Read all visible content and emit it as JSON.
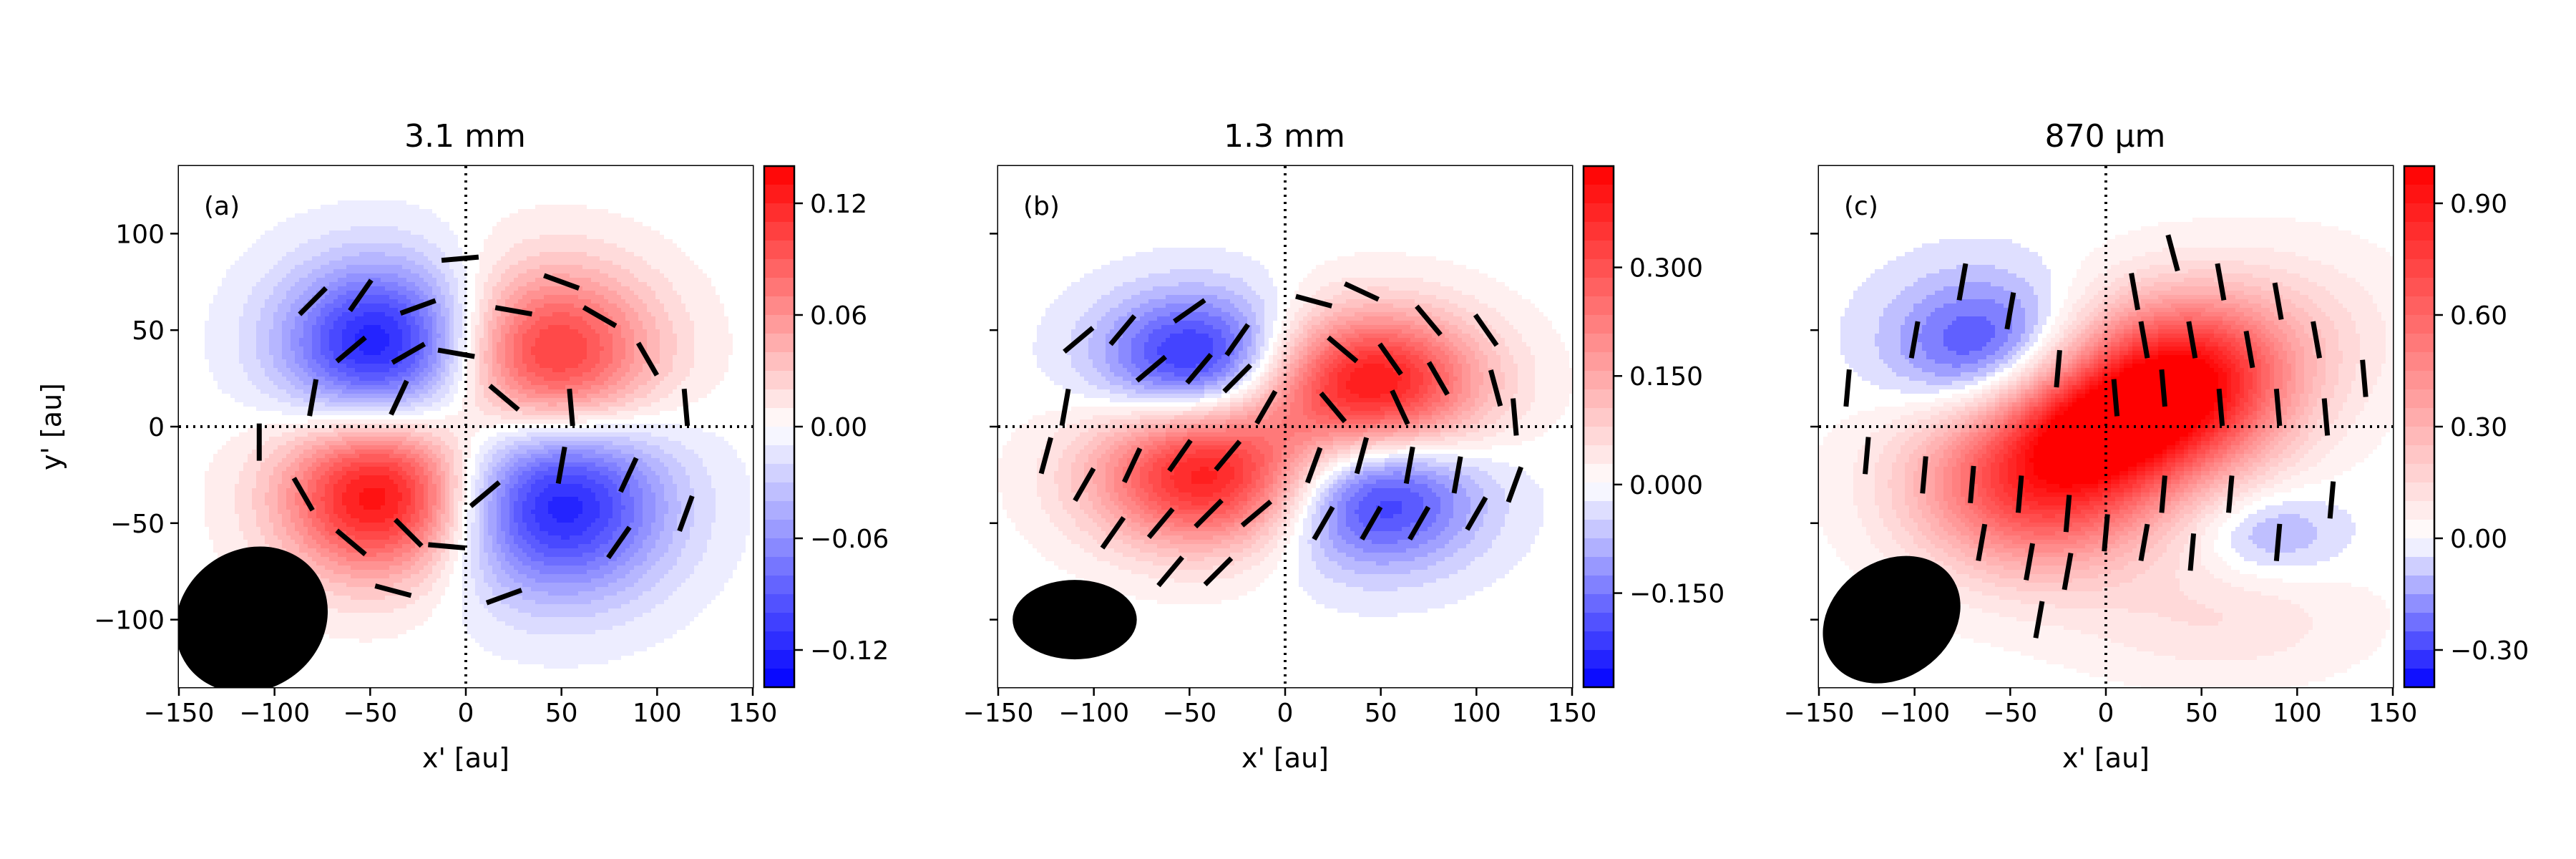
{
  "figure": {
    "xlabel": "x' [au]",
    "ylabel": "y' [au]",
    "x_ticks": [
      -150,
      -100,
      -50,
      0,
      50,
      100,
      150
    ],
    "y_ticks": [
      -100,
      -50,
      0,
      50,
      100
    ],
    "xlim": [
      -150,
      150
    ],
    "ylim": [
      -135,
      135
    ]
  },
  "chart_data": [
    {
      "type": "heatmap",
      "title": "3.1 mm",
      "label": "(a)",
      "xlabel": "x' [au]",
      "ylabel": "y' [au]",
      "xlim": [
        -150,
        150
      ],
      "ylim": [
        -135,
        135
      ],
      "show_ylabel": true,
      "show_ytick_labels": true,
      "colorbar": {
        "vmin": -0.14,
        "vmax": 0.14,
        "ticks": [
          -0.12,
          -0.06,
          0.0,
          0.06,
          0.12
        ],
        "tick_labels": [
          "−0.12",
          "−0.06",
          "0.00",
          "0.06",
          "0.12"
        ],
        "cmap": "bwr"
      },
      "blobs": [
        {
          "x": -45,
          "y": 42,
          "sx": 36,
          "sy": 30,
          "amp": -0.13
        },
        {
          "x": 45,
          "y": 35,
          "sx": 38,
          "sy": 32,
          "amp": 0.12
        },
        {
          "x": -45,
          "y": -35,
          "sx": 36,
          "sy": 30,
          "amp": 0.14
        },
        {
          "x": 48,
          "y": -38,
          "sx": 40,
          "sy": 34,
          "amp": -0.13
        }
      ],
      "vectors": [
        {
          "x": -80,
          "y": 65,
          "angle": 45
        },
        {
          "x": -55,
          "y": 68,
          "angle": 55
        },
        {
          "x": -25,
          "y": 62,
          "angle": 20
        },
        {
          "x": -60,
          "y": 40,
          "angle": 40
        },
        {
          "x": -30,
          "y": 38,
          "angle": 30
        },
        {
          "x": -80,
          "y": 15,
          "angle": 80
        },
        {
          "x": -35,
          "y": 15,
          "angle": 65
        },
        {
          "x": -5,
          "y": 38,
          "angle": -10
        },
        {
          "x": -3,
          "y": 87,
          "angle": 5
        },
        {
          "x": 25,
          "y": 60,
          "angle": -10
        },
        {
          "x": 50,
          "y": 75,
          "angle": -20
        },
        {
          "x": 70,
          "y": 57,
          "angle": -30
        },
        {
          "x": 20,
          "y": 15,
          "angle": -40
        },
        {
          "x": 55,
          "y": 10,
          "angle": -85
        },
        {
          "x": 95,
          "y": 35,
          "angle": -60
        },
        {
          "x": 115,
          "y": 10,
          "angle": -85
        },
        {
          "x": -108,
          "y": -8,
          "angle": 90
        },
        {
          "x": -85,
          "y": -35,
          "angle": -60
        },
        {
          "x": -60,
          "y": -60,
          "angle": -40
        },
        {
          "x": -30,
          "y": -55,
          "angle": -45
        },
        {
          "x": -10,
          "y": -62,
          "angle": -5
        },
        {
          "x": -38,
          "y": -85,
          "angle": -15
        },
        {
          "x": 10,
          "y": -35,
          "angle": 40
        },
        {
          "x": 20,
          "y": -88,
          "angle": 20
        },
        {
          "x": 50,
          "y": -20,
          "angle": 80
        },
        {
          "x": 85,
          "y": -25,
          "angle": 65
        },
        {
          "x": 80,
          "y": -60,
          "angle": 55
        },
        {
          "x": 115,
          "y": -45,
          "angle": 70
        }
      ],
      "beam": {
        "x": -112,
        "y": -100,
        "major": 70,
        "minor": 60,
        "angle": 35
      }
    },
    {
      "type": "heatmap",
      "title": "1.3 mm",
      "label": "(b)",
      "xlabel": "x' [au]",
      "ylabel": "",
      "xlim": [
        -150,
        150
      ],
      "ylim": [
        -135,
        135
      ],
      "show_ylabel": false,
      "show_ytick_labels": false,
      "colorbar": {
        "vmin": -0.28,
        "vmax": 0.44,
        "ticks": [
          -0.15,
          0.0,
          0.15,
          0.3
        ],
        "tick_labels": [
          "−0.150",
          "0.000",
          "0.150",
          "0.300"
        ],
        "cmap": "bwr"
      },
      "blobs": [
        {
          "x": -45,
          "y": 35,
          "sx": 36,
          "sy": 24,
          "amp": -0.26
        },
        {
          "x": 45,
          "y": 22,
          "sx": 40,
          "sy": 26,
          "amp": 0.42
        },
        {
          "x": -40,
          "y": -25,
          "sx": 42,
          "sy": 26,
          "amp": 0.4
        },
        {
          "x": 45,
          "y": -35,
          "sx": 38,
          "sy": 26,
          "amp": -0.26
        }
      ],
      "vectors": [
        {
          "x": -108,
          "y": 45,
          "angle": 40
        },
        {
          "x": -85,
          "y": 50,
          "angle": 50
        },
        {
          "x": -50,
          "y": 60,
          "angle": 35
        },
        {
          "x": -25,
          "y": 45,
          "angle": 55
        },
        {
          "x": -70,
          "y": 30,
          "angle": 40
        },
        {
          "x": -45,
          "y": 30,
          "angle": 50
        },
        {
          "x": -25,
          "y": 25,
          "angle": 45
        },
        {
          "x": -115,
          "y": 10,
          "angle": 80
        },
        {
          "x": -10,
          "y": 10,
          "angle": 60
        },
        {
          "x": 15,
          "y": 65,
          "angle": -15
        },
        {
          "x": 40,
          "y": 70,
          "angle": -25
        },
        {
          "x": 75,
          "y": 55,
          "angle": -50
        },
        {
          "x": 105,
          "y": 50,
          "angle": -55
        },
        {
          "x": 30,
          "y": 40,
          "angle": -40
        },
        {
          "x": 55,
          "y": 35,
          "angle": -55
        },
        {
          "x": 80,
          "y": 25,
          "angle": -60
        },
        {
          "x": 110,
          "y": 20,
          "angle": -75
        },
        {
          "x": 25,
          "y": 10,
          "angle": -50
        },
        {
          "x": 60,
          "y": 10,
          "angle": -65
        },
        {
          "x": 120,
          "y": 5,
          "angle": -85
        },
        {
          "x": -125,
          "y": -15,
          "angle": 75
        },
        {
          "x": -105,
          "y": -30,
          "angle": 60
        },
        {
          "x": -80,
          "y": -20,
          "angle": 65
        },
        {
          "x": -55,
          "y": -15,
          "angle": 55
        },
        {
          "x": -30,
          "y": -15,
          "angle": 50
        },
        {
          "x": -90,
          "y": -55,
          "angle": 55
        },
        {
          "x": -65,
          "y": -50,
          "angle": 50
        },
        {
          "x": -40,
          "y": -45,
          "angle": 45
        },
        {
          "x": -15,
          "y": -45,
          "angle": 40
        },
        {
          "x": -60,
          "y": -75,
          "angle": 50
        },
        {
          "x": -35,
          "y": -75,
          "angle": 45
        },
        {
          "x": 15,
          "y": -20,
          "angle": 70
        },
        {
          "x": 40,
          "y": -15,
          "angle": 75
        },
        {
          "x": 65,
          "y": -20,
          "angle": 80
        },
        {
          "x": 90,
          "y": -25,
          "angle": 80
        },
        {
          "x": 20,
          "y": -50,
          "angle": 60
        },
        {
          "x": 45,
          "y": -50,
          "angle": 60
        },
        {
          "x": 70,
          "y": -50,
          "angle": 60
        },
        {
          "x": 100,
          "y": -45,
          "angle": 60
        },
        {
          "x": 120,
          "y": -30,
          "angle": 70
        }
      ],
      "beam": {
        "x": -110,
        "y": -100,
        "major": 55,
        "minor": 34,
        "angle": 0
      }
    },
    {
      "type": "heatmap",
      "title": "870 μm",
      "label": "(c)",
      "xlabel": "x' [au]",
      "ylabel": "",
      "xlim": [
        -150,
        150
      ],
      "ylim": [
        -135,
        135
      ],
      "show_ylabel": false,
      "show_ytick_labels": false,
      "colorbar": {
        "vmin": -0.4,
        "vmax": 1.0,
        "ticks": [
          -0.3,
          0.0,
          0.3,
          0.6,
          0.9
        ],
        "tick_labels": [
          "−0.30",
          "0.00",
          "0.30",
          "0.60",
          "0.90"
        ],
        "cmap": "bwr"
      },
      "blobs": [
        {
          "x": -65,
          "y": 40,
          "sx": 34,
          "sy": 26,
          "amp": -0.32
        },
        {
          "x": 40,
          "y": 22,
          "sx": 38,
          "sy": 30,
          "amp": 1.0
        },
        {
          "x": -35,
          "y": -28,
          "sx": 45,
          "sy": 32,
          "amp": 0.8
        },
        {
          "x": -5,
          "y": 0,
          "sx": 30,
          "sy": 22,
          "amp": 0.5
        },
        {
          "x": 85,
          "y": -55,
          "sx": 26,
          "sy": 16,
          "amp": -0.15
        },
        {
          "x": 60,
          "y": -100,
          "sx": 50,
          "sy": 22,
          "amp": 0.12
        },
        {
          "x": 100,
          "y": 50,
          "sx": 40,
          "sy": 30,
          "amp": 0.12
        }
      ],
      "vectors": [
        {
          "x": -135,
          "y": 20,
          "angle": 85
        },
        {
          "x": -100,
          "y": 45,
          "angle": 80
        },
        {
          "x": -75,
          "y": 75,
          "angle": 80
        },
        {
          "x": -50,
          "y": 60,
          "angle": 80
        },
        {
          "x": -25,
          "y": 30,
          "angle": 85
        },
        {
          "x": -125,
          "y": -15,
          "angle": 85
        },
        {
          "x": -95,
          "y": -25,
          "angle": 85
        },
        {
          "x": -70,
          "y": -30,
          "angle": 85
        },
        {
          "x": -45,
          "y": -35,
          "angle": 85
        },
        {
          "x": -20,
          "y": -45,
          "angle": 85
        },
        {
          "x": -65,
          "y": -60,
          "angle": 80
        },
        {
          "x": -40,
          "y": -70,
          "angle": 80
        },
        {
          "x": -20,
          "y": -75,
          "angle": 80
        },
        {
          "x": -35,
          "y": -100,
          "angle": 80
        },
        {
          "x": 0,
          "y": -55,
          "angle": 85
        },
        {
          "x": 15,
          "y": 70,
          "angle": -80
        },
        {
          "x": 35,
          "y": 90,
          "angle": -75
        },
        {
          "x": 60,
          "y": 75,
          "angle": -80
        },
        {
          "x": 90,
          "y": 65,
          "angle": -80
        },
        {
          "x": 110,
          "y": 45,
          "angle": -80
        },
        {
          "x": 20,
          "y": 45,
          "angle": -80
        },
        {
          "x": 45,
          "y": 45,
          "angle": -80
        },
        {
          "x": 75,
          "y": 40,
          "angle": -80
        },
        {
          "x": 5,
          "y": 15,
          "angle": -85
        },
        {
          "x": 30,
          "y": 20,
          "angle": -85
        },
        {
          "x": 60,
          "y": 10,
          "angle": -85
        },
        {
          "x": 90,
          "y": 10,
          "angle": -85
        },
        {
          "x": 115,
          "y": 5,
          "angle": -85
        },
        {
          "x": 135,
          "y": 25,
          "angle": -85
        },
        {
          "x": 30,
          "y": -35,
          "angle": 85
        },
        {
          "x": 65,
          "y": -35,
          "angle": 85
        },
        {
          "x": 20,
          "y": -60,
          "angle": 80
        },
        {
          "x": 45,
          "y": -65,
          "angle": 85
        },
        {
          "x": 90,
          "y": -60,
          "angle": 85
        },
        {
          "x": 118,
          "y": -38,
          "angle": 85
        }
      ],
      "beam": {
        "x": -112,
        "y": -100,
        "major": 65,
        "minor": 50,
        "angle": 35
      }
    }
  ]
}
